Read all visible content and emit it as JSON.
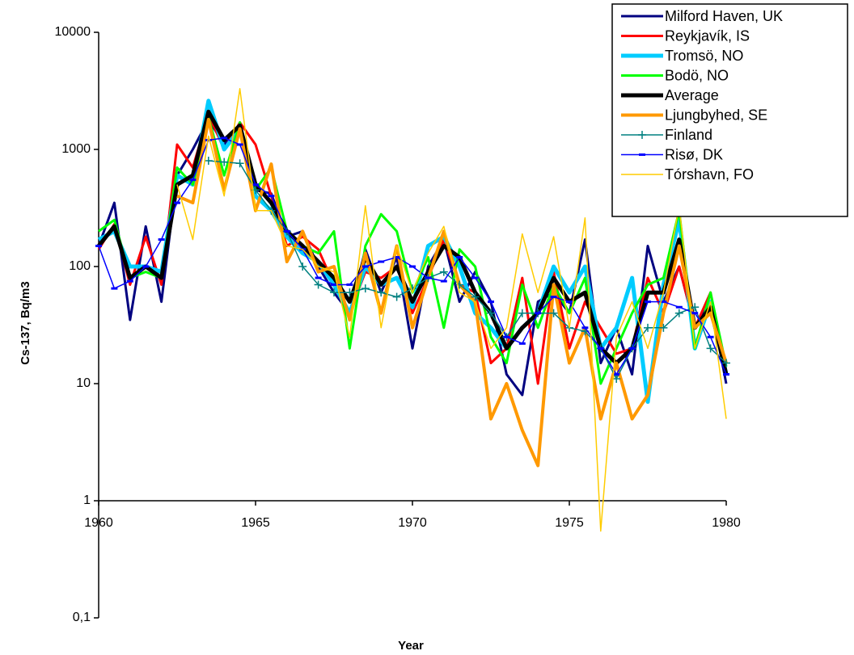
{
  "chart_data": {
    "type": "line",
    "x_label": "Year",
    "y_label": "Cs-137, Bq/m3",
    "log_y": true,
    "x_axis_crosses_at": 1,
    "xlim": [
      1960,
      1980
    ],
    "xticks": [
      1960,
      1965,
      1970,
      1975,
      1980
    ],
    "ylim": [
      0.1,
      10000
    ],
    "yticks": [
      {
        "value": 0.1,
        "label": "0,1"
      },
      1,
      10,
      100,
      1000,
      10000
    ],
    "x": [
      1960,
      1960.5,
      1961,
      1961.5,
      1962,
      1962.5,
      1963,
      1963.5,
      1964,
      1964.5,
      1965,
      1965.5,
      1966,
      1966.5,
      1967,
      1967.5,
      1968,
      1968.5,
      1969,
      1969.5,
      1970,
      1970.5,
      1971,
      1971.5,
      1972,
      1972.5,
      1973,
      1973.5,
      1974,
      1974.5,
      1975,
      1975.5,
      1976,
      1976.5,
      1977,
      1977.5,
      1978,
      1978.5,
      1979,
      1979.5,
      1980
    ],
    "series": [
      {
        "name": "Milford Haven, UK",
        "color": "#000080",
        "width": 3,
        "values": [
          150,
          350,
          35,
          220,
          50,
          600,
          1000,
          1800,
          1100,
          1600,
          450,
          420,
          180,
          200,
          100,
          60,
          40,
          140,
          60,
          120,
          20,
          100,
          170,
          50,
          90,
          50,
          12,
          8,
          50,
          60,
          40,
          170,
          15,
          30,
          12,
          150,
          50,
          100,
          30,
          50,
          10
        ]
      },
      {
        "name": "Reykjavík, IS",
        "color": "#ff0000",
        "width": 3,
        "values": [
          140,
          230,
          70,
          180,
          70,
          1100,
          700,
          2000,
          1000,
          1700,
          1100,
          400,
          150,
          180,
          140,
          70,
          40,
          90,
          80,
          100,
          40,
          80,
          170,
          70,
          60,
          15,
          20,
          80,
          10,
          90,
          20,
          50,
          30,
          18,
          20,
          80,
          40,
          100,
          30,
          60,
          12
        ]
      },
      {
        "name": "Tromsö, NO",
        "color": "#00ccff",
        "width": 5,
        "values": [
          170,
          200,
          100,
          100,
          90,
          600,
          500,
          2600,
          1000,
          1500,
          400,
          300,
          180,
          130,
          110,
          70,
          40,
          100,
          70,
          80,
          45,
          150,
          180,
          100,
          40,
          30,
          20,
          30,
          40,
          100,
          60,
          100,
          20,
          30,
          80,
          7,
          70,
          250,
          20,
          50,
          12
        ]
      },
      {
        "name": "Bodö, NO",
        "color": "#00ff00",
        "width": 3,
        "values": [
          200,
          250,
          80,
          90,
          80,
          700,
          500,
          1900,
          600,
          1700,
          450,
          700,
          200,
          150,
          130,
          200,
          20,
          150,
          280,
          200,
          60,
          120,
          30,
          140,
          100,
          25,
          15,
          70,
          30,
          70,
          40,
          80,
          10,
          20,
          40,
          70,
          80,
          300,
          20,
          60,
          14
        ]
      },
      {
        "name": "Average",
        "color": "#000000",
        "width": 5,
        "values": [
          150,
          220,
          80,
          100,
          80,
          500,
          600,
          2100,
          1200,
          1600,
          500,
          350,
          200,
          150,
          110,
          80,
          50,
          120,
          70,
          100,
          50,
          90,
          150,
          120,
          60,
          40,
          20,
          30,
          40,
          80,
          50,
          60,
          20,
          15,
          20,
          60,
          60,
          170,
          30,
          45,
          12
        ]
      },
      {
        "name": "Ljungbyhed, SE",
        "color": "#ff9900",
        "width": 4,
        "values": [
          null,
          null,
          null,
          null,
          null,
          400,
          350,
          1800,
          450,
          1500,
          300,
          750,
          110,
          200,
          90,
          100,
          35,
          130,
          40,
          150,
          30,
          80,
          200,
          70,
          50,
          5,
          10,
          4,
          2,
          70,
          15,
          30,
          5,
          15,
          5,
          8,
          40,
          150,
          30,
          40,
          15
        ]
      },
      {
        "name": "Finland",
        "color": "#008080",
        "width": 1.5,
        "marker": "plus",
        "values": [
          null,
          null,
          null,
          null,
          null,
          null,
          null,
          800,
          780,
          760,
          450,
          300,
          200,
          100,
          70,
          60,
          60,
          65,
          60,
          55,
          65,
          80,
          90,
          70,
          55,
          40,
          25,
          40,
          40,
          40,
          30,
          28,
          20,
          11,
          20,
          30,
          30,
          40,
          45,
          20,
          15
        ]
      },
      {
        "name": "Risø, DK",
        "color": "#0000ff",
        "width": 1.5,
        "marker": "dash",
        "values": [
          150,
          65,
          75,
          100,
          170,
          350,
          550,
          1200,
          1250,
          1100,
          500,
          400,
          200,
          140,
          80,
          70,
          70,
          100,
          110,
          120,
          100,
          80,
          75,
          120,
          80,
          50,
          25,
          22,
          40,
          55,
          50,
          30,
          20,
          12,
          20,
          50,
          50,
          45,
          40,
          25,
          12
        ]
      },
      {
        "name": "Tórshavn, FO",
        "color": "#ffcc00",
        "width": 1.5,
        "values": [
          null,
          null,
          null,
          null,
          null,
          500,
          170,
          1300,
          400,
          3300,
          300,
          300,
          150,
          140,
          100,
          90,
          25,
          330,
          30,
          150,
          60,
          130,
          220,
          60,
          50,
          20,
          30,
          190,
          60,
          180,
          30,
          260,
          0.55,
          25,
          50,
          20,
          60,
          330,
          20,
          50,
          5
        ]
      }
    ]
  }
}
